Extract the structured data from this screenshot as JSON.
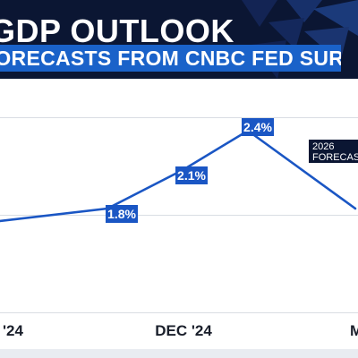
{
  "header": {
    "title": "GDP OUTLOOK",
    "subtitle": "FORECASTS FROM CNBC FED SURVEY"
  },
  "colors": {
    "line": "#1a56c4",
    "label_bg": "#1a56c4",
    "label_text": "#ffffff",
    "grid": "#d9dde3",
    "tick_text": "#1a1f2b",
    "background": "#ffffff",
    "header_bg": "#0b1633",
    "subtitle_bg": "#1a62c9"
  },
  "chart_data": {
    "type": "line",
    "title": "GDP OUTLOOK",
    "subtitle": "FORECASTS FROM CNBC FED SURVEY",
    "x": [
      "'24",
      "",
      "DEC '24",
      "",
      "M"
    ],
    "x_tick_labels": [
      "'24",
      "DEC '24",
      "M"
    ],
    "series": [
      {
        "values": [
          1.7,
          1.8,
          2.1,
          2.4,
          1.8
        ],
        "data_labels": [
          "",
          "1.8%",
          "2.1%",
          "2.4%",
          ""
        ]
      }
    ],
    "annotations": [
      {
        "text_lines": [
          "2026",
          "FORECAS"
        ],
        "attached_to_index": 4
      }
    ],
    "ylim": [
      0.5,
      3.0
    ],
    "grid": true,
    "gridlines_y": [
      1.0,
      1.75,
      2.5
    ],
    "legend": "none"
  }
}
